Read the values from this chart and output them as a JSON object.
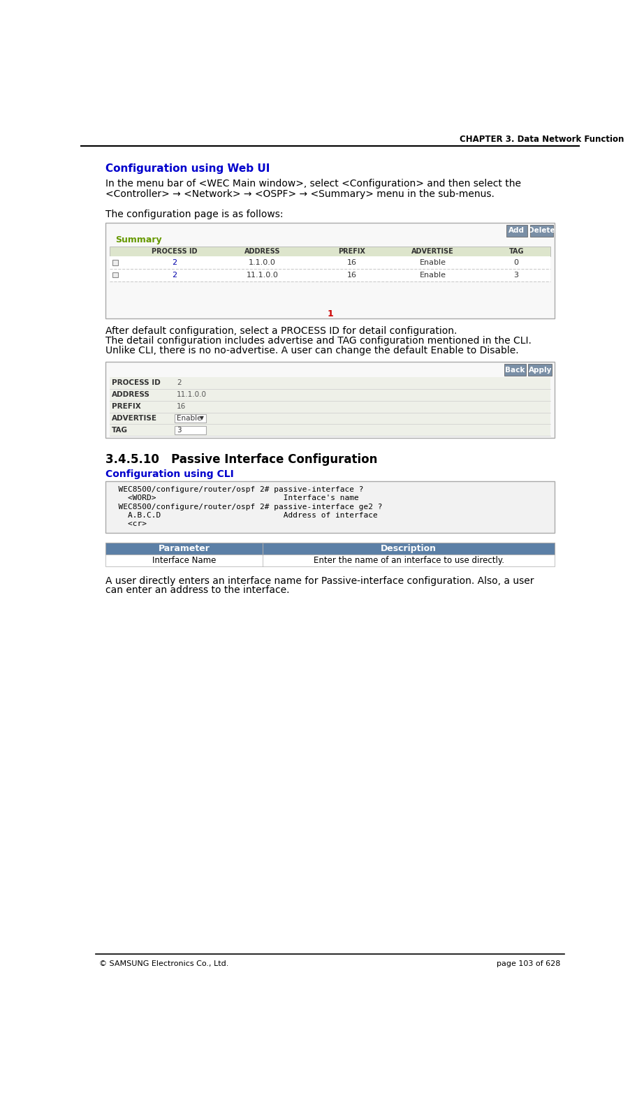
{
  "header_text": "CHAPTER 3. Data Network Function",
  "footer_left": "© SAMSUNG Electronics Co., Ltd.",
  "footer_right": "page 103 of 628",
  "section_title": "Configuration using Web UI",
  "section_title_color": "#0000CC",
  "para1_line1": "In the menu bar of <WEC Main window>, select <Configuration> and then select the",
  "para1_line2": "<Controller> → <Network> → <OSPF> → <Summary> menu in the sub-menus.",
  "para2": "The configuration page is as follows:",
  "table1_title": "Summary",
  "table1_title_color": "#669900",
  "table1_headers": [
    "",
    "PROCESS ID",
    "ADDRESS",
    "PREFIX",
    "ADVERTISE",
    "TAG"
  ],
  "table1_rows": [
    [
      "",
      "2",
      "1.1.0.0",
      "16",
      "Enable",
      "0"
    ],
    [
      "",
      "2",
      "11.1.0.0",
      "16",
      "Enable",
      "3"
    ]
  ],
  "table1_pagination": "1",
  "para3_lines": [
    "After default configuration, select a PROCESS ID for detail configuration.",
    "The detail configuration includes advertise and TAG configuration mentioned in the CLI.",
    "Unlike CLI, there is no no-advertise. A user can change the default Enable to Disable."
  ],
  "table2_rows": [
    [
      "PROCESS ID",
      "2"
    ],
    [
      "ADDRESS",
      "11.1.0.0"
    ],
    [
      "PREFIX",
      "16"
    ],
    [
      "ADVERTISE",
      "Enable"
    ],
    [
      "TAG",
      "3"
    ]
  ],
  "subsection_num": "3.4.5.10",
  "subsection_title": "Passive Interface Configuration",
  "cli_section_title": "Configuration using CLI",
  "cli_section_title_color": "#0000CC",
  "cli_code": [
    "  WEC8500/configure/router/ospf 2# passive-interface ?",
    "    <WORD>                           Interface's name",
    "  WEC8500/configure/router/ospf 2# passive-interface ge2 ?",
    "    A.B.C.D                          Address of interface",
    "    <cr>"
  ],
  "param_table_headers": [
    "Parameter",
    "Description"
  ],
  "param_table_rows": [
    [
      "Interface Name",
      "Enter the name of an interface to use directly."
    ]
  ],
  "para4_lines": [
    "A user directly enters an interface name for Passive-interface configuration. Also, a user",
    "can enter an address to the interface."
  ],
  "bg_color": "#ffffff",
  "table1_col_positions": [
    8,
    55,
    200,
    380,
    530,
    680
  ],
  "table1_col_widths": [
    47,
    145,
    180,
    150,
    150,
    158
  ],
  "param_header_bg": "#5b7fa6",
  "param_header_fg": "#ffffff",
  "btn_color": "#7a8fa6"
}
